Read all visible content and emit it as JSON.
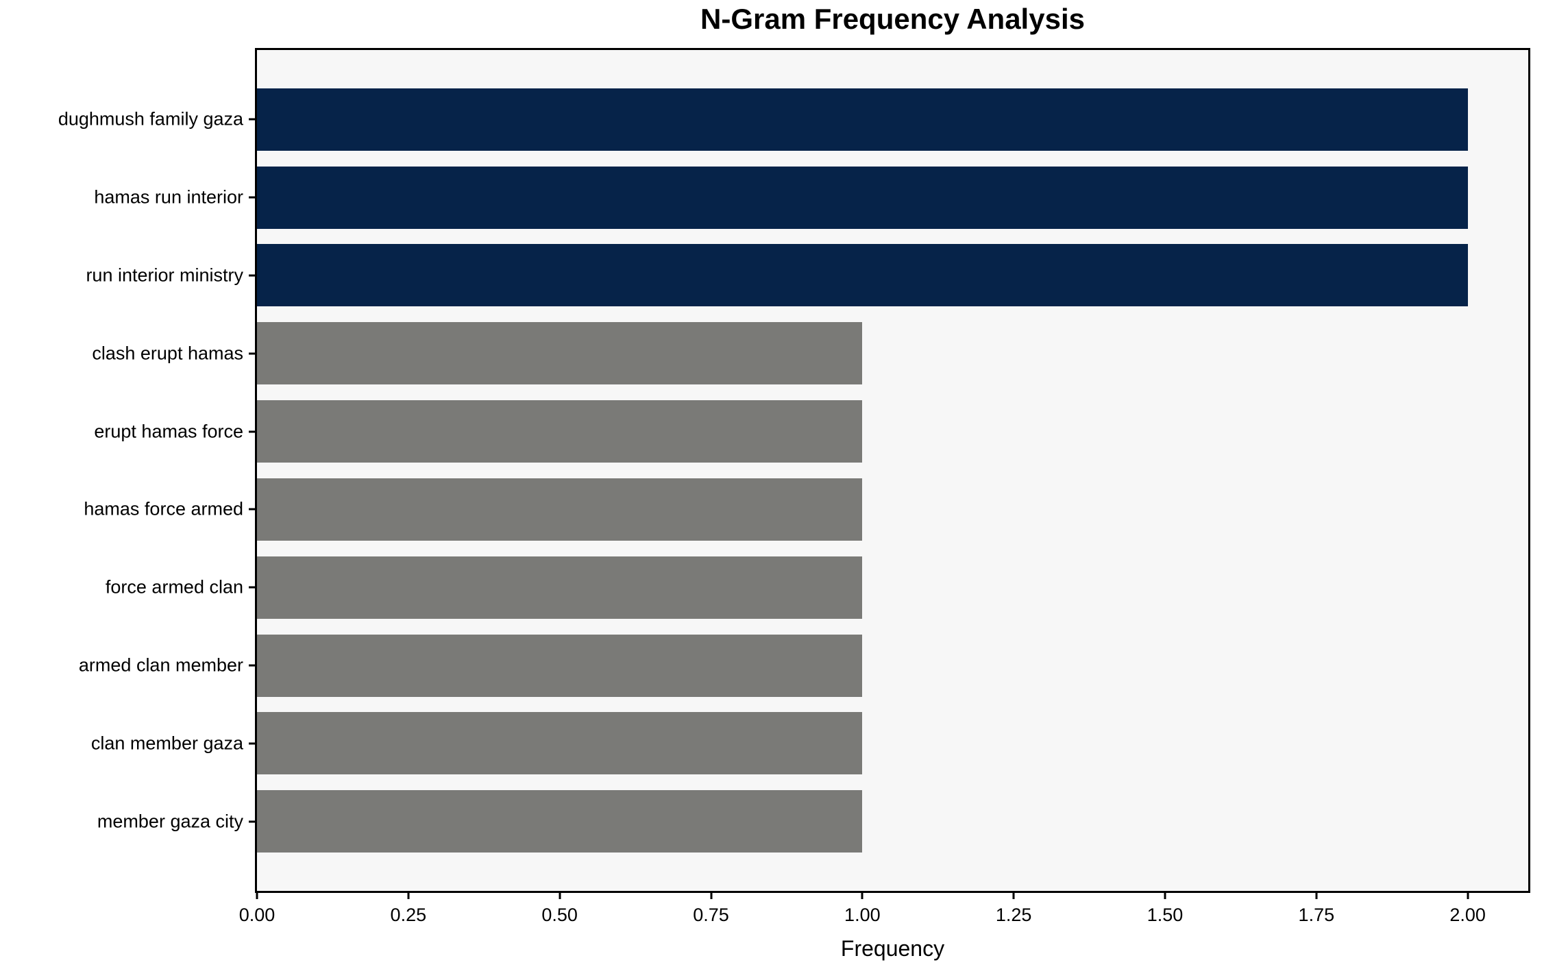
{
  "chart_data": {
    "type": "bar",
    "orientation": "horizontal",
    "title": "N-Gram Frequency Analysis",
    "xlabel": "Frequency",
    "ylabel": "",
    "categories": [
      "dughmush family gaza",
      "hamas run interior",
      "run interior ministry",
      "clash erupt hamas",
      "erupt hamas force",
      "hamas force armed",
      "force armed clan",
      "armed clan member",
      "clan member gaza",
      "member gaza city"
    ],
    "values": [
      2,
      2,
      2,
      1,
      1,
      1,
      1,
      1,
      1,
      1
    ],
    "bar_colors": [
      "#062349",
      "#062349",
      "#062349",
      "#7a7a77",
      "#7a7a77",
      "#7a7a77",
      "#7a7a77",
      "#7a7a77",
      "#7a7a77",
      "#7a7a77"
    ],
    "highlight_color": "#062349",
    "base_color": "#7a7a77",
    "plot_background": "#f7f7f7",
    "xlim": [
      0,
      2.1
    ],
    "xticks": [
      0,
      0.25,
      0.5,
      0.75,
      1.0,
      1.25,
      1.5,
      1.75,
      2.0
    ],
    "xtick_labels": [
      "0.00",
      "0.25",
      "0.50",
      "0.75",
      "1.00",
      "1.25",
      "1.50",
      "1.75",
      "2.00"
    ],
    "grid": false,
    "legend": "none",
    "bar_width_fraction": 0.8
  }
}
